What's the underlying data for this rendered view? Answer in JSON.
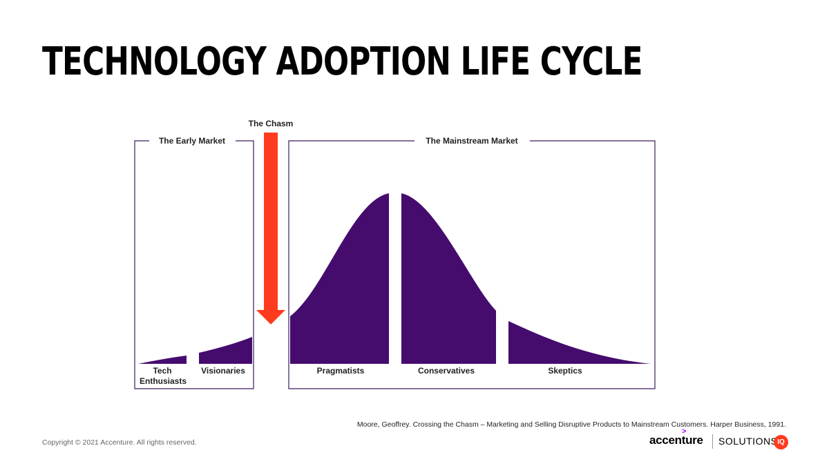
{
  "title": "TECHNOLOGY ADOPTION LIFE CYCLE",
  "chasm": {
    "label": "The Chasm"
  },
  "markets": {
    "early": {
      "label": "The Early Market"
    },
    "mainstream": {
      "label": "The Mainstream Market"
    }
  },
  "segments": [
    {
      "id": "tech-enthusiasts",
      "label": "Tech",
      "label2": "Enthusiasts"
    },
    {
      "id": "visionaries",
      "label": "Visionaries"
    },
    {
      "id": "pragmatists",
      "label": "Pragmatists"
    },
    {
      "id": "conservatives",
      "label": "Conservatives"
    },
    {
      "id": "skeptics",
      "label": "Skeptics"
    }
  ],
  "citation": "Moore, Geoffrey. Crossing the Chasm – Marketing and Selling Disruptive Products to Mainstream Customers. Harper Business, 1991.",
  "footer": {
    "copyright": "Copyright © 2021 Accenture. All rights reserved.",
    "logo_accenture": "accenture",
    "logo_solutions": "SOLUTIONS",
    "logo_iq": "IQ"
  },
  "colors": {
    "curve": "#450c6e",
    "frame": "#3a1a5c",
    "chasm_arrow": "#ff3b1f",
    "text": "#000000"
  }
}
